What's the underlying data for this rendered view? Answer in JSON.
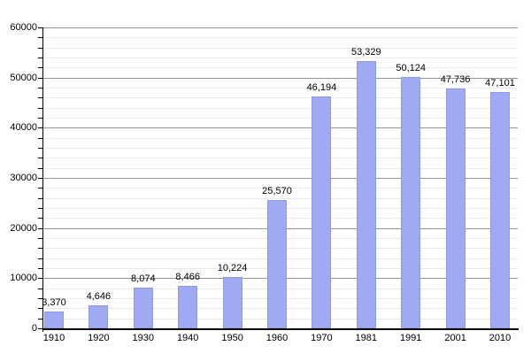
{
  "chart_data": {
    "type": "bar",
    "title": "",
    "xlabel": "",
    "ylabel": "",
    "categories": [
      "1910",
      "1920",
      "1930",
      "1940",
      "1950",
      "1960",
      "1970",
      "1981",
      "1991",
      "2001",
      "2010"
    ],
    "values": [
      3370,
      4646,
      8074,
      8466,
      10224,
      25570,
      46194,
      53329,
      50124,
      47736,
      47101
    ],
    "value_labels": [
      "3,370",
      "4,646",
      "8,074",
      "8,466",
      "10,224",
      "25,570",
      "46,194",
      "53,329",
      "50,124",
      "47,736",
      "47,101"
    ],
    "ylim": [
      0,
      60000
    ],
    "y_major_step": 10000,
    "y_minor_step": 2000,
    "y_tick_labels": [
      "0",
      "10000",
      "20000",
      "30000",
      "40000",
      "50000",
      "60000"
    ],
    "grid": true,
    "legend": "none",
    "colors": {
      "bar_fill": "#a0aaf2",
      "bar_edge": "#7d8ae1",
      "major_grid": "#969696",
      "minor_grid": "#e8e8e8",
      "axis": "#000000",
      "text": "#000000",
      "background": "#ffffff"
    }
  }
}
